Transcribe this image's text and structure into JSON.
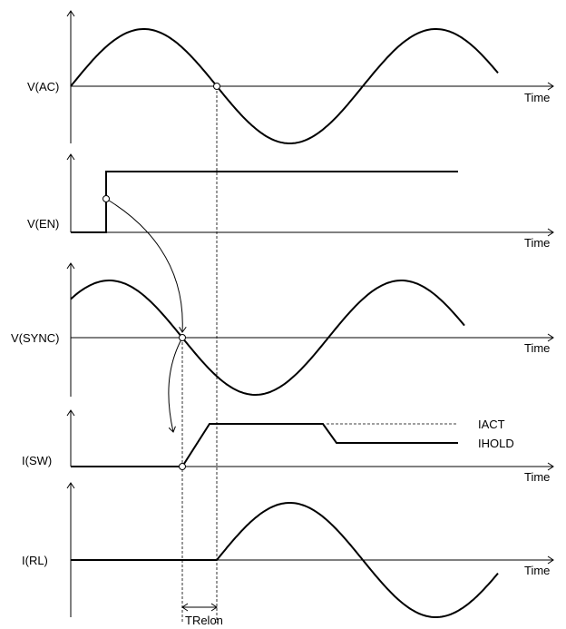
{
  "axis_unit": "Time",
  "signals": [
    {
      "id": "vac",
      "label": "V(AC)"
    },
    {
      "id": "ven",
      "label": "V(EN)"
    },
    {
      "id": "vsync",
      "label": "V(SYNC)"
    },
    {
      "id": "isw",
      "label": "I(SW)"
    },
    {
      "id": "irl",
      "label": "I(RL)"
    }
  ],
  "current_levels": {
    "act": "IACT",
    "hold": "IHOLD"
  },
  "delay_label": "TRelon"
}
